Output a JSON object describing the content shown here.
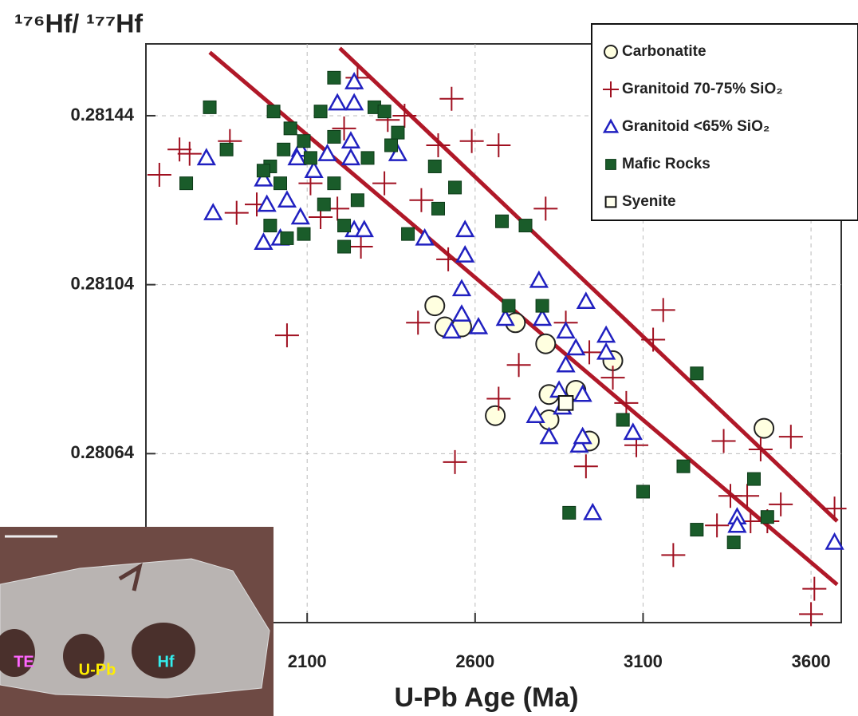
{
  "chart_data": {
    "type": "scatter",
    "y_label": "¹⁷⁶Hf/ ¹⁷⁷Hf",
    "x_label": "U-Pb Age (Ma)",
    "xlim": [
      1620,
      3690
    ],
    "xticks": [
      2100,
      2600,
      3100,
      3600
    ],
    "ylim": [
      0.28024,
      0.28161
    ],
    "yticks": [
      0.28064,
      0.28104,
      0.28144
    ],
    "grid": true,
    "legend": "upper right",
    "series": [
      {
        "name": "Carbonatite",
        "marker": "circle",
        "color": "#222222",
        "fill": "#ffffe0",
        "x": [
          2480,
          2510,
          2560,
          2720,
          2810,
          3010,
          2660,
          2820,
          2900,
          2820,
          2940,
          3460
        ],
        "values": [
          0.28099,
          0.28094,
          0.28094,
          0.28095,
          0.2809,
          0.28086,
          0.28073,
          0.28078,
          0.28079,
          0.28072,
          0.28067,
          0.2807
        ]
      },
      {
        "name": "Granitoid 70-75% SiO₂",
        "marker": "plus",
        "color": "#a01020",
        "x": [
          1660,
          1720,
          1750,
          1870,
          1890,
          1950,
          2040,
          2530,
          2390,
          2590,
          2670,
          2810,
          2490,
          2330,
          2440,
          2520,
          2260,
          2430,
          2730,
          2670,
          2540,
          2930,
          2870,
          2940,
          3010,
          3050,
          3080,
          3130,
          3160,
          3340,
          3450,
          3540,
          3410,
          3360,
          3320,
          3420,
          3510,
          3470,
          3670,
          3610,
          3600,
          3190,
          2250,
          2210,
          2340,
          2140,
          2190,
          2110
        ],
        "values": [
          0.2813,
          0.28136,
          0.28135,
          0.28138,
          0.28121,
          0.28123,
          0.28092,
          0.28148,
          0.28144,
          0.28138,
          0.28137,
          0.28122,
          0.28137,
          0.28128,
          0.28124,
          0.2811,
          0.28113,
          0.28095,
          0.28085,
          0.28077,
          0.28062,
          0.28061,
          0.28095,
          0.28088,
          0.28082,
          0.28076,
          0.28066,
          0.28091,
          0.28098,
          0.28067,
          0.28065,
          0.28068,
          0.28054,
          0.28054,
          0.28047,
          0.28048,
          0.28052,
          0.28048,
          0.28051,
          0.28032,
          0.28026,
          0.2804,
          0.28153,
          0.28141,
          0.28143,
          0.2812,
          0.28122,
          0.28128
        ]
      },
      {
        "name": "Granitoid <65% SiO₂",
        "marker": "triangle",
        "color": "#2020c0",
        "x": [
          1820,
          1800,
          1970,
          2020,
          1980,
          1970,
          2080,
          2080,
          2160,
          2190,
          2240,
          2240,
          2230,
          2230,
          2240,
          2270,
          2370,
          2450,
          2570,
          2570,
          2560,
          2560,
          2530,
          2610,
          2690,
          2790,
          2800,
          2930,
          2870,
          2900,
          2870,
          2990,
          2990,
          2850,
          2920,
          2780,
          2820,
          2860,
          2910,
          2920,
          3070,
          2950,
          3380,
          3380,
          3670,
          2120,
          2040,
          2070
        ],
        "values": [
          0.28121,
          0.28134,
          0.28114,
          0.28115,
          0.28123,
          0.28129,
          0.28136,
          0.2812,
          0.28135,
          0.28147,
          0.28147,
          0.28152,
          0.28138,
          0.28134,
          0.28117,
          0.28117,
          0.28135,
          0.28115,
          0.28117,
          0.28111,
          0.28103,
          0.28097,
          0.28093,
          0.28094,
          0.28096,
          0.28105,
          0.28096,
          0.281,
          0.28093,
          0.28089,
          0.28085,
          0.28092,
          0.28088,
          0.28079,
          0.28078,
          0.28073,
          0.28068,
          0.28075,
          0.28066,
          0.28068,
          0.28069,
          0.2805,
          0.28049,
          0.28047,
          0.28043,
          0.28131,
          0.28124,
          0.28134
        ]
      },
      {
        "name": "Mafic Rocks",
        "marker": "square",
        "color": "#1a5c2a",
        "x": [
          1810,
          1860,
          1740,
          2000,
          2180,
          2140,
          2180,
          2090,
          2050,
          1990,
          2030,
          2110,
          2300,
          2330,
          2350,
          2370,
          2280,
          2250,
          2210,
          2210,
          2150,
          2090,
          2040,
          1990,
          2480,
          2540,
          2490,
          2400,
          2680,
          2750,
          2700,
          2800,
          3260,
          3040,
          3220,
          3100,
          2880,
          3260,
          3370,
          3430,
          3470,
          2180,
          1970,
          2020
        ],
        "values": [
          0.28146,
          0.28136,
          0.28128,
          0.28145,
          0.28153,
          0.28145,
          0.28139,
          0.28138,
          0.28141,
          0.28132,
          0.28136,
          0.28134,
          0.28146,
          0.28145,
          0.28137,
          0.2814,
          0.28134,
          0.28124,
          0.28118,
          0.28113,
          0.28123,
          0.28116,
          0.28115,
          0.28118,
          0.28132,
          0.28127,
          0.28122,
          0.28116,
          0.28119,
          0.28118,
          0.28099,
          0.28099,
          0.28083,
          0.28072,
          0.28061,
          0.28055,
          0.2805,
          0.28046,
          0.28043,
          0.28058,
          0.28049,
          0.28128,
          0.28131,
          0.28128
        ]
      },
      {
        "name": "Syenite",
        "marker": "square",
        "color": "#111111",
        "fill": "#ffffee",
        "size": 22,
        "x": [
          2870
        ],
        "values": [
          0.28076
        ]
      }
    ],
    "reference_lines": [
      {
        "color": "#b01828",
        "x": [
          1810,
          3678
        ],
        "values": [
          0.28159,
          0.28033
        ]
      },
      {
        "color": "#b01828",
        "x": [
          2197,
          3678
        ],
        "values": [
          0.2816,
          0.28048
        ]
      }
    ],
    "inset": {
      "labels": [
        "TE",
        "U-Pb",
        "Hf"
      ]
    }
  }
}
